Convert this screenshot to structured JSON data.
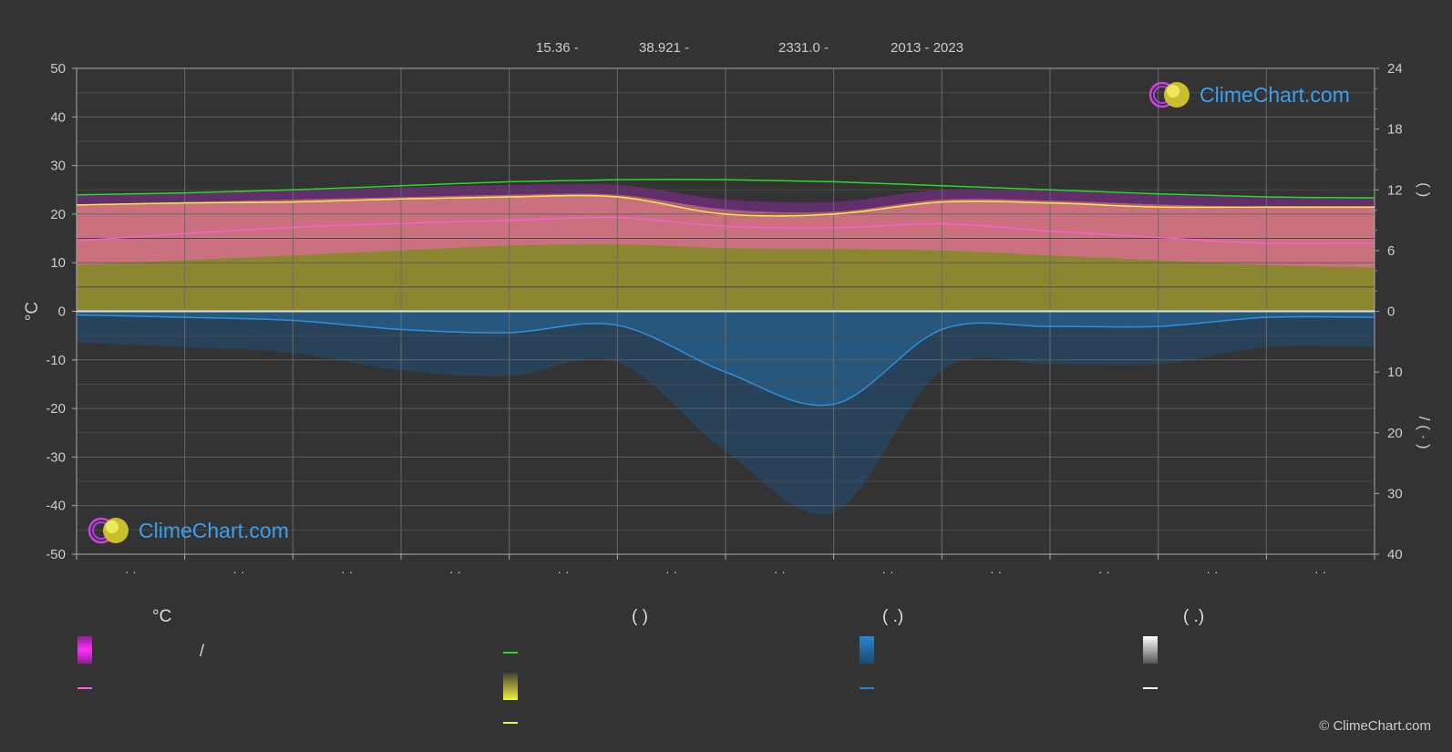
{
  "header": {
    "lat": "15.36 -",
    "lon": "38.921 -",
    "elev": "2331.0 -",
    "years": "2013 - 2023"
  },
  "branding": {
    "logo_text": "ClimeChart.com",
    "copyright": "© ClimeChart.com"
  },
  "colors": {
    "background": "#333333",
    "grid": "#5a5a5a",
    "daylight": "#22dd22",
    "sunshine": "#f2ef40",
    "avg_temp": "#ff5ce0",
    "temp_band": "#e0689a",
    "sun_band": "#9a9630",
    "precip": "#2a86d0",
    "axis_text": "#cccccc"
  },
  "legend": {
    "col1_head": "°C",
    "col1_sep": "/",
    "col2_head": "(          )",
    "col3_head": "(    .)",
    "col4_head": "(    .)"
  },
  "chart_data": {
    "type": "area",
    "title": "",
    "x_points": 13,
    "month_ticks": [
      "· ·",
      "· ·",
      "· ·",
      "· ·",
      "· ·",
      "· ·",
      "· ·",
      "· ·",
      "· ·",
      "· ·",
      "· ·",
      "· ·"
    ],
    "left_axis": {
      "label": "°C",
      "ylim": [
        -50,
        50
      ],
      "ticks": [
        50,
        40,
        30,
        20,
        10,
        0,
        -10,
        -20,
        -30,
        -40,
        -50
      ]
    },
    "right_axis_top": {
      "ylim": [
        0,
        24
      ],
      "ticks": [
        24,
        18,
        12,
        6,
        0
      ],
      "label": "(     )"
    },
    "right_axis_bottom": {
      "ylim": [
        0,
        40
      ],
      "ticks": [
        0,
        10,
        20,
        30,
        40
      ],
      "label": "/    (  ·  )"
    },
    "series": [
      {
        "key": "daylight_hours",
        "values": [
          11.5,
          11.7,
          12.0,
          12.4,
          12.8,
          13.0,
          13.0,
          12.8,
          12.4,
          12.0,
          11.6,
          11.3,
          11.2
        ]
      },
      {
        "key": "sunshine_hours",
        "values": [
          10.5,
          10.7,
          10.8,
          11.1,
          11.3,
          11.3,
          9.6,
          9.6,
          10.8,
          10.7,
          10.3,
          10.3,
          10.3
        ]
      },
      {
        "key": "avg_temp_c",
        "values": [
          14.5,
          16.0,
          17.3,
          18.1,
          18.7,
          19.3,
          17.5,
          17.2,
          18.0,
          16.5,
          15.2,
          14.0,
          14.0
        ]
      },
      {
        "key": "rain_mm_day",
        "values": [
          0.6,
          1.0,
          1.5,
          3.0,
          3.5,
          2.3,
          10.0,
          15.3,
          3.0,
          2.5,
          2.5,
          1.0,
          1.0
        ]
      }
    ],
    "band_temp": {
      "low": [
        9.5,
        10.5,
        11.5,
        12.5,
        13.5,
        13.8,
        13.0,
        12.8,
        12.5,
        11.5,
        10.5,
        9.5,
        9.0
      ],
      "high": [
        22.0,
        22.5,
        23.0,
        23.5,
        24.0,
        24.0,
        21.0,
        20.5,
        23.0,
        22.8,
        22.0,
        21.5,
        21.5
      ]
    }
  }
}
